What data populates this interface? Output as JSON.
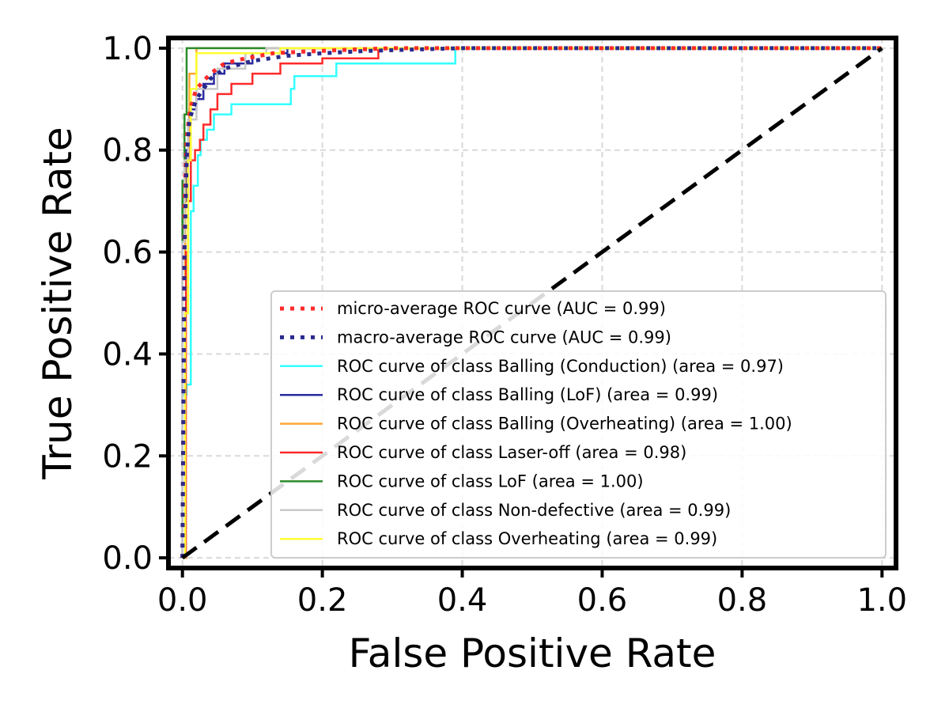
{
  "chart_data": {
    "type": "line",
    "title": "",
    "xlabel": "False Positive Rate",
    "ylabel": "True Positive Rate",
    "xlim": [
      -0.02,
      1.02
    ],
    "ylim": [
      -0.02,
      1.02
    ],
    "x_ticks": [
      "0.0",
      "0.2",
      "0.4",
      "0.6",
      "0.8",
      "1.0"
    ],
    "y_ticks": [
      "0.0",
      "0.2",
      "0.4",
      "0.6",
      "0.8",
      "1.0"
    ],
    "grid": true,
    "legend_position": "lower-right",
    "diagonal": {
      "x": [
        0,
        1
      ],
      "y": [
        0,
        1
      ],
      "color": "#000000",
      "style": "dashed"
    },
    "series": [
      {
        "name": "micro-average ROC curve (AUC = 0.99)",
        "color": "#ff2a2a",
        "style": "dotted",
        "x": [
          0,
          0.002,
          0.003,
          0.006,
          0.01,
          0.015,
          0.02,
          0.04,
          0.06,
          0.09,
          0.13,
          0.17,
          0.22,
          0.3,
          1.0
        ],
        "y": [
          0,
          0.45,
          0.7,
          0.82,
          0.87,
          0.9,
          0.92,
          0.95,
          0.97,
          0.98,
          0.99,
          0.993,
          0.996,
          1.0,
          1.0
        ]
      },
      {
        "name": "macro-average ROC curve (AUC = 0.99)",
        "color": "#2a2a8c",
        "style": "dotted",
        "x": [
          0,
          0.003,
          0.006,
          0.01,
          0.02,
          0.04,
          0.06,
          0.1,
          0.15,
          0.2,
          0.27,
          0.4,
          1.0
        ],
        "y": [
          0,
          0.6,
          0.78,
          0.86,
          0.9,
          0.94,
          0.96,
          0.975,
          0.985,
          0.99,
          0.995,
          1.0,
          1.0
        ]
      },
      {
        "name": "ROC curve of class Balling (Conduction) (area = 0.97)",
        "color": "#33ffff",
        "style": "solid",
        "x": [
          0,
          0,
          0.006,
          0.006,
          0.012,
          0.012,
          0.016,
          0.016,
          0.022,
          0.022,
          0.026,
          0.026,
          0.035,
          0.035,
          0.045,
          0.045,
          0.07,
          0.07,
          0.155,
          0.155,
          0.16,
          0.16,
          0.22,
          0.22,
          0.39,
          0.39,
          1.0
        ],
        "y": [
          0,
          0.32,
          0.32,
          0.34,
          0.34,
          0.68,
          0.68,
          0.73,
          0.73,
          0.79,
          0.79,
          0.82,
          0.82,
          0.84,
          0.84,
          0.87,
          0.87,
          0.89,
          0.89,
          0.92,
          0.92,
          0.945,
          0.945,
          0.97,
          0.97,
          1.0,
          1.0
        ]
      },
      {
        "name": "ROC curve of class Balling (LoF) (area = 0.99)",
        "color": "#2a2aa0",
        "style": "solid",
        "x": [
          0,
          0,
          0.005,
          0.005,
          0.01,
          0.01,
          0.02,
          0.02,
          0.03,
          0.03,
          0.045,
          0.045,
          0.06,
          0.06,
          0.1,
          0.1,
          0.15,
          0.15,
          1.0
        ],
        "y": [
          0,
          0.7,
          0.7,
          0.8,
          0.8,
          0.88,
          0.88,
          0.9,
          0.9,
          0.93,
          0.93,
          0.95,
          0.95,
          0.97,
          0.97,
          0.99,
          0.99,
          1.0,
          1.0
        ]
      },
      {
        "name": "ROC curve of class Balling (Overheating) (area = 1.00)",
        "color": "#ffa533",
        "style": "solid",
        "x": [
          0,
          0,
          0.004,
          0.004,
          0.01,
          0.01,
          0.02,
          0.02,
          1.0
        ],
        "y": [
          0,
          0.55,
          0.55,
          0.78,
          0.78,
          0.95,
          0.95,
          1.0,
          1.0
        ]
      },
      {
        "name": "ROC curve of class Laser-off (area = 0.98)",
        "color": "#ff2a2a",
        "style": "solid",
        "x": [
          0,
          0.005,
          0.005,
          0.008,
          0.008,
          0.012,
          0.012,
          0.018,
          0.018,
          0.025,
          0.025,
          0.03,
          0.03,
          0.04,
          0.04,
          0.05,
          0.05,
          0.07,
          0.07,
          0.1,
          0.1,
          0.14,
          0.14,
          0.2,
          0.2,
          0.28,
          0.28,
          1.0
        ],
        "y": [
          0,
          0,
          0.6,
          0.6,
          0.7,
          0.7,
          0.78,
          0.78,
          0.8,
          0.8,
          0.82,
          0.82,
          0.85,
          0.85,
          0.88,
          0.88,
          0.91,
          0.91,
          0.93,
          0.93,
          0.95,
          0.95,
          0.97,
          0.97,
          0.98,
          0.98,
          1.0,
          1.0
        ]
      },
      {
        "name": "ROC curve of class LoF (area = 1.00)",
        "color": "#2a8c2a",
        "style": "solid",
        "x": [
          0,
          0,
          0.003,
          0.003,
          0.006,
          0.006,
          0.12,
          0.12,
          1.0
        ],
        "y": [
          0,
          0.74,
          0.74,
          0.87,
          0.87,
          1.0,
          1.0,
          1.0,
          1.0
        ]
      },
      {
        "name": "ROC curve of class Non-defective (area = 0.99)",
        "color": "#c8c8c8",
        "style": "solid",
        "x": [
          0,
          0,
          0.003,
          0.003,
          0.008,
          0.008,
          0.02,
          0.02,
          0.05,
          0.05,
          0.09,
          0.09,
          0.12,
          0.12,
          1.0
        ],
        "y": [
          0,
          0.62,
          0.62,
          0.78,
          0.78,
          0.86,
          0.86,
          0.92,
          0.92,
          0.96,
          0.96,
          0.99,
          0.99,
          1.0,
          1.0
        ]
      },
      {
        "name": "ROC curve of class Overheating (area = 0.99)",
        "color": "#ffff33",
        "style": "solid",
        "x": [
          0,
          0.004,
          0.004,
          0.008,
          0.008,
          0.012,
          0.012,
          0.02,
          0.02,
          0.14,
          0.14,
          1.0
        ],
        "y": [
          0,
          0,
          0.48,
          0.48,
          0.78,
          0.78,
          0.92,
          0.92,
          0.99,
          0.99,
          1.0,
          1.0
        ]
      }
    ]
  }
}
